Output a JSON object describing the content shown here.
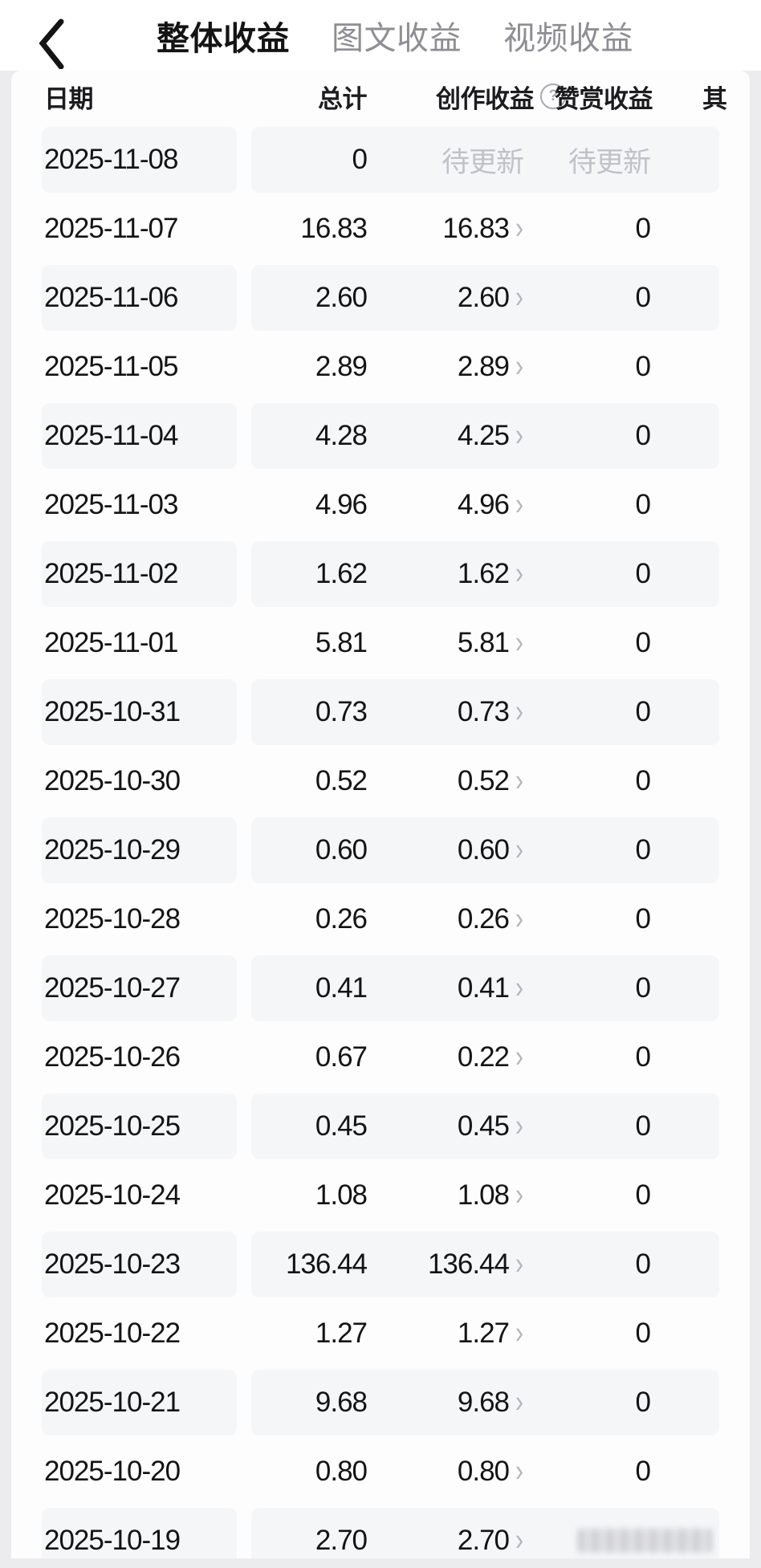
{
  "header": {
    "tabs": [
      {
        "label": "整体收益",
        "active": true
      },
      {
        "label": "图文收益",
        "active": false
      },
      {
        "label": "视频收益",
        "active": false
      }
    ]
  },
  "icons": {
    "back": "chevron-left",
    "help": "?",
    "chevron_right": "›"
  },
  "table": {
    "pending_label": "待更新",
    "columns": {
      "date": "日期",
      "total": "总计",
      "creation": "创作收益",
      "appreciation": "赞赏收益",
      "other": "其"
    },
    "rows": [
      {
        "date": "2025-11-08",
        "total": "0",
        "creation": "待更新",
        "chevron": false,
        "appreciation": "待更新"
      },
      {
        "date": "2025-11-07",
        "total": "16.83",
        "creation": "16.83",
        "chevron": true,
        "appreciation": "0"
      },
      {
        "date": "2025-11-06",
        "total": "2.60",
        "creation": "2.60",
        "chevron": true,
        "appreciation": "0"
      },
      {
        "date": "2025-11-05",
        "total": "2.89",
        "creation": "2.89",
        "chevron": true,
        "appreciation": "0"
      },
      {
        "date": "2025-11-04",
        "total": "4.28",
        "creation": "4.25",
        "chevron": true,
        "appreciation": "0"
      },
      {
        "date": "2025-11-03",
        "total": "4.96",
        "creation": "4.96",
        "chevron": true,
        "appreciation": "0"
      },
      {
        "date": "2025-11-02",
        "total": "1.62",
        "creation": "1.62",
        "chevron": true,
        "appreciation": "0"
      },
      {
        "date": "2025-11-01",
        "total": "5.81",
        "creation": "5.81",
        "chevron": true,
        "appreciation": "0"
      },
      {
        "date": "2025-10-31",
        "total": "0.73",
        "creation": "0.73",
        "chevron": true,
        "appreciation": "0"
      },
      {
        "date": "2025-10-30",
        "total": "0.52",
        "creation": "0.52",
        "chevron": true,
        "appreciation": "0"
      },
      {
        "date": "2025-10-29",
        "total": "0.60",
        "creation": "0.60",
        "chevron": true,
        "appreciation": "0"
      },
      {
        "date": "2025-10-28",
        "total": "0.26",
        "creation": "0.26",
        "chevron": true,
        "appreciation": "0"
      },
      {
        "date": "2025-10-27",
        "total": "0.41",
        "creation": "0.41",
        "chevron": true,
        "appreciation": "0"
      },
      {
        "date": "2025-10-26",
        "total": "0.67",
        "creation": "0.22",
        "chevron": true,
        "appreciation": "0"
      },
      {
        "date": "2025-10-25",
        "total": "0.45",
        "creation": "0.45",
        "chevron": true,
        "appreciation": "0"
      },
      {
        "date": "2025-10-24",
        "total": "1.08",
        "creation": "1.08",
        "chevron": true,
        "appreciation": "0"
      },
      {
        "date": "2025-10-23",
        "total": "136.44",
        "creation": "136.44",
        "chevron": true,
        "appreciation": "0"
      },
      {
        "date": "2025-10-22",
        "total": "1.27",
        "creation": "1.27",
        "chevron": true,
        "appreciation": "0"
      },
      {
        "date": "2025-10-21",
        "total": "9.68",
        "creation": "9.68",
        "chevron": true,
        "appreciation": "0"
      },
      {
        "date": "2025-10-20",
        "total": "0.80",
        "creation": "0.80",
        "chevron": true,
        "appreciation": "0"
      },
      {
        "date": "2025-10-19",
        "total": "2.70",
        "creation": "2.70",
        "chevron": true,
        "appreciation": "",
        "smudged": true
      }
    ]
  },
  "colors": {
    "page_bg": "#ececee",
    "panel_bg": "#fdfdfe",
    "stripe": "#f5f6f8",
    "text": "#141414",
    "inactive_tab": "#8e8e93",
    "pending_text": "#c2c2c6",
    "chevron": "#b5b5ba"
  }
}
